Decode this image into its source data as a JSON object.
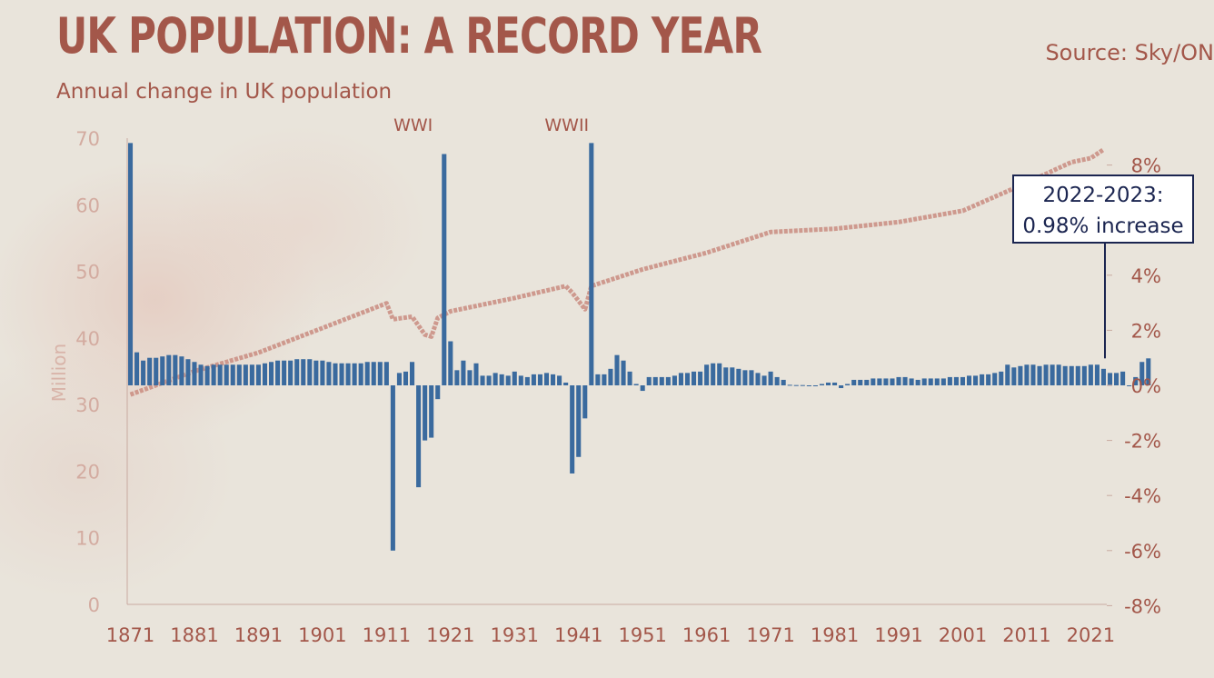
{
  "chart_data": {
    "type": "bar+line",
    "title": "UK POPULATION: A RECORD YEAR",
    "subtitle": "Annual change in UK population",
    "source": "Source: Sky/ON",
    "ylabel_left": "Million",
    "left_axis": {
      "ticks": [
        0,
        10,
        20,
        30,
        40,
        50,
        60,
        70
      ],
      "range": [
        0,
        70
      ]
    },
    "right_axis": {
      "ticks": [
        "8%",
        "4%",
        "2%",
        "0%",
        "-2%",
        "-4%",
        "-6%",
        "-8%"
      ],
      "range": [
        -8,
        10
      ]
    },
    "x_ticks": [
      "1871",
      "1881",
      "1891",
      "1901",
      "1911",
      "1921",
      "1931",
      "1941",
      "1951",
      "1961",
      "1971",
      "1981",
      "1991",
      "2001",
      "2011",
      "2021"
    ],
    "annotations": [
      {
        "label": "WWI",
        "year": 1918
      },
      {
        "label": "WWII",
        "year": 1942
      }
    ],
    "callout": {
      "line1": "2022-2023:",
      "line2": "0.98% increase",
      "year": 2023
    },
    "colors": {
      "bars": "#3a6a9e",
      "line": "#c98c80",
      "axis": "#c9aaa0",
      "text": "#a3574a",
      "callout_border": "#1b2550"
    },
    "bar_series": {
      "name": "Annual change (%)",
      "start_year": 1871,
      "values": [
        8.8,
        1.2,
        0.9,
        1.0,
        1.0,
        1.05,
        1.1,
        1.1,
        1.05,
        0.95,
        0.85,
        0.75,
        0.7,
        0.75,
        0.75,
        0.75,
        0.75,
        0.75,
        0.75,
        0.75,
        0.75,
        0.8,
        0.85,
        0.9,
        0.9,
        0.9,
        0.95,
        0.95,
        0.95,
        0.9,
        0.9,
        0.85,
        0.8,
        0.8,
        0.8,
        0.8,
        0.8,
        0.85,
        0.85,
        0.85,
        0.85,
        -6.0,
        0.45,
        0.5,
        0.85,
        -3.7,
        -2.0,
        -1.9,
        -0.5,
        8.4,
        1.6,
        0.55,
        0.9,
        0.55,
        0.8,
        0.35,
        0.35,
        0.45,
        0.4,
        0.35,
        0.5,
        0.35,
        0.3,
        0.4,
        0.4,
        0.45,
        0.4,
        0.35,
        0.1,
        -3.2,
        -2.6,
        -1.2,
        8.8,
        0.4,
        0.4,
        0.6,
        1.1,
        0.9,
        0.5,
        0.05,
        -0.2,
        0.3,
        0.3,
        0.3,
        0.3,
        0.35,
        0.45,
        0.45,
        0.5,
        0.5,
        0.75,
        0.8,
        0.8,
        0.65,
        0.65,
        0.6,
        0.55,
        0.55,
        0.45,
        0.35,
        0.5,
        0.3,
        0.2,
        0.02,
        0.01,
        0.01,
        0.0,
        -0.02,
        0.05,
        0.1,
        0.1,
        -0.1,
        0.05,
        0.2,
        0.2,
        0.2,
        0.25,
        0.25,
        0.25,
        0.25,
        0.3,
        0.3,
        0.25,
        0.2,
        0.25,
        0.25,
        0.25,
        0.25,
        0.3,
        0.3,
        0.3,
        0.35,
        0.35,
        0.4,
        0.4,
        0.45,
        0.5,
        0.75,
        0.65,
        0.7,
        0.75,
        0.75,
        0.7,
        0.75,
        0.75,
        0.75,
        0.7,
        0.7,
        0.7,
        0.7,
        0.75,
        0.75,
        0.6,
        0.45,
        0.45,
        0.5,
        0.0,
        0.3,
        0.85,
        0.98
      ]
    },
    "line_series": {
      "name": "UK population (million)",
      "points": [
        [
          1871,
          31.5
        ],
        [
          1881,
          35.0
        ],
        [
          1891,
          37.8
        ],
        [
          1901,
          41.5
        ],
        [
          1911,
          45.2
        ],
        [
          1912,
          42.8
        ],
        [
          1915,
          43.2
        ],
        [
          1917,
          40.5
        ],
        [
          1918,
          40.2
        ],
        [
          1919,
          43.0
        ],
        [
          1921,
          44.0
        ],
        [
          1931,
          46.0
        ],
        [
          1939,
          47.8
        ],
        [
          1940,
          46.8
        ],
        [
          1942,
          44.3
        ],
        [
          1943,
          47.8
        ],
        [
          1951,
          50.3
        ],
        [
          1961,
          52.8
        ],
        [
          1971,
          55.9
        ],
        [
          1981,
          56.4
        ],
        [
          1991,
          57.4
        ],
        [
          2001,
          59.1
        ],
        [
          2011,
          63.3
        ],
        [
          2018,
          66.4
        ],
        [
          2021,
          67.0
        ],
        [
          2023,
          68.3
        ]
      ]
    }
  }
}
